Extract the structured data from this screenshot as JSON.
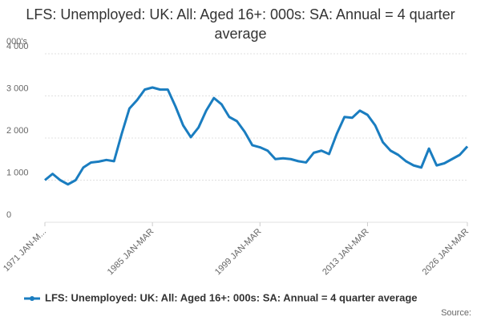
{
  "chart_data": {
    "type": "line",
    "title": "LFS: Unemployed: UK: All: Aged 16+: 000s: SA: Annual = 4 quarter average",
    "y_label": "000's",
    "source": "Source:",
    "categories": [
      "1971 JAN-M...",
      null,
      null,
      null,
      null,
      null,
      null,
      null,
      null,
      null,
      null,
      null,
      null,
      null,
      "1985 JAN-MAR",
      null,
      null,
      null,
      null,
      null,
      null,
      null,
      null,
      null,
      null,
      null,
      null,
      null,
      "1999 JAN-MAR",
      null,
      null,
      null,
      null,
      null,
      null,
      null,
      null,
      null,
      null,
      null,
      null,
      null,
      "2013 JAN-MAR",
      null,
      null,
      null,
      null,
      null,
      null,
      null,
      null,
      null,
      null,
      null,
      null,
      "2026 JAN-MAR"
    ],
    "series": [
      {
        "name": "LFS: Unemployed: UK: All: Aged 16+: 000s: SA: Annual = 4 quarter average",
        "color": "#1a7dc0",
        "values": [
          1000,
          1150,
          1000,
          900,
          1000,
          1300,
          1420,
          1440,
          1480,
          1450,
          2100,
          2700,
          2900,
          3150,
          3200,
          3150,
          3150,
          2750,
          2300,
          2020,
          2250,
          2650,
          2950,
          2800,
          2500,
          2400,
          2150,
          1830,
          1780,
          1700,
          1500,
          1520,
          1500,
          1450,
          1420,
          1650,
          1700,
          1620,
          2100,
          2500,
          2480,
          2650,
          2550,
          2300,
          1900,
          1700,
          1600,
          1450,
          1350,
          1300,
          1750,
          1350,
          1400,
          1500,
          1600,
          1800
        ]
      }
    ],
    "ylim": [
      0,
      4000
    ],
    "yticks": [
      0,
      {
        "value": 1000,
        "label": "1 000"
      },
      {
        "value": 2000,
        "label": "2 000"
      },
      {
        "value": 3000,
        "label": "3 000"
      },
      {
        "value": 4000,
        "label": "4 000"
      }
    ],
    "grid": true,
    "legend": "bottom"
  }
}
